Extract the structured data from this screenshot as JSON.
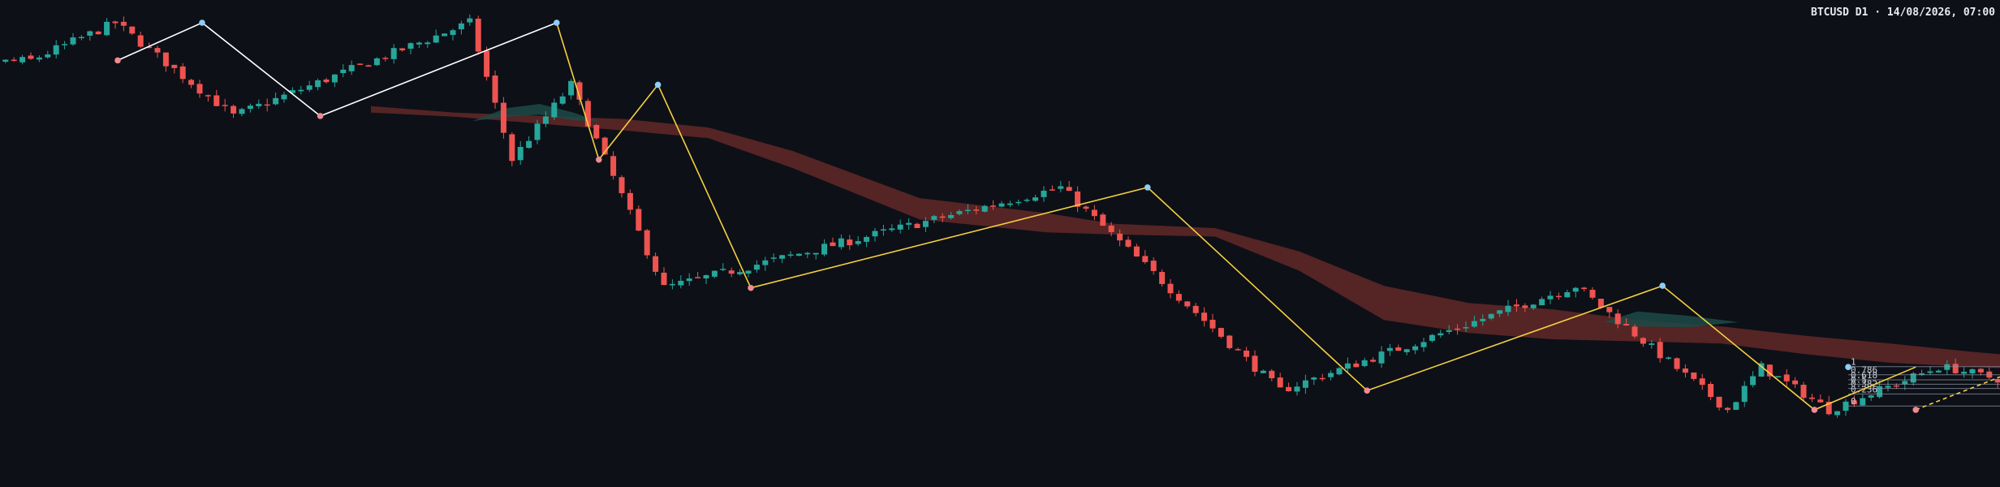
{
  "chart_title": "BTCUSD D1 · 14/08/2026, 07:00",
  "chart_data": {
    "type": "candlestick",
    "title": "BTCUSD D1 · 14/08/2026, 07:00",
    "ylim": [
      0,
      1000
    ],
    "colors": {
      "background": "#0d1017",
      "bull": "#26a69a",
      "bear": "#ef5350",
      "cloud_bear": "#6e2b2b",
      "cloud_bull": "#1d4a47",
      "zigzag_old": "#ffffff",
      "zigzag_new": "#f4d03f",
      "pivot_high": "#8ecdf5",
      "pivot_low": "#f08a94"
    },
    "zigzag_white": [
      [
        0,
        912
      ],
      [
        10,
        1000
      ],
      [
        24,
        782
      ],
      [
        52,
        1000
      ]
    ],
    "zigzag_yellow": [
      [
        52,
        1000
      ],
      [
        57,
        680
      ],
      [
        64,
        855
      ],
      [
        75,
        380
      ],
      [
        122,
        615
      ],
      [
        148,
        140
      ],
      [
        183,
        385
      ],
      [
        201,
        95
      ],
      [
        213,
        195
      ],
      [
        215,
        195
      ],
      [
        222,
        95
      ],
      [
        226,
        95
      ]
    ],
    "zigzag_projection": [
      [
        213,
        95
      ],
      [
        226,
        195
      ]
    ],
    "pivots_high": [
      [
        10,
        1000
      ],
      [
        52,
        1000
      ],
      [
        64,
        855
      ],
      [
        122,
        615
      ],
      [
        183,
        385
      ],
      [
        205,
        195
      ],
      [
        226,
        195
      ]
    ],
    "pivots_low": [
      [
        0,
        912
      ],
      [
        24,
        782
      ],
      [
        57,
        680
      ],
      [
        75,
        380
      ],
      [
        148,
        140
      ],
      [
        201,
        95
      ],
      [
        213,
        95
      ]
    ],
    "fib_levels": [
      {
        "label": "1",
        "value": 196
      },
      {
        "label": "0.786",
        "value": 177
      },
      {
        "label": "0.618",
        "value": 165
      },
      {
        "label": "0.5",
        "value": 155
      },
      {
        "label": "0.382",
        "value": 145
      },
      {
        "label": "0.236",
        "value": 132
      },
      {
        "label": "0",
        "value": 104
      }
    ]
  }
}
